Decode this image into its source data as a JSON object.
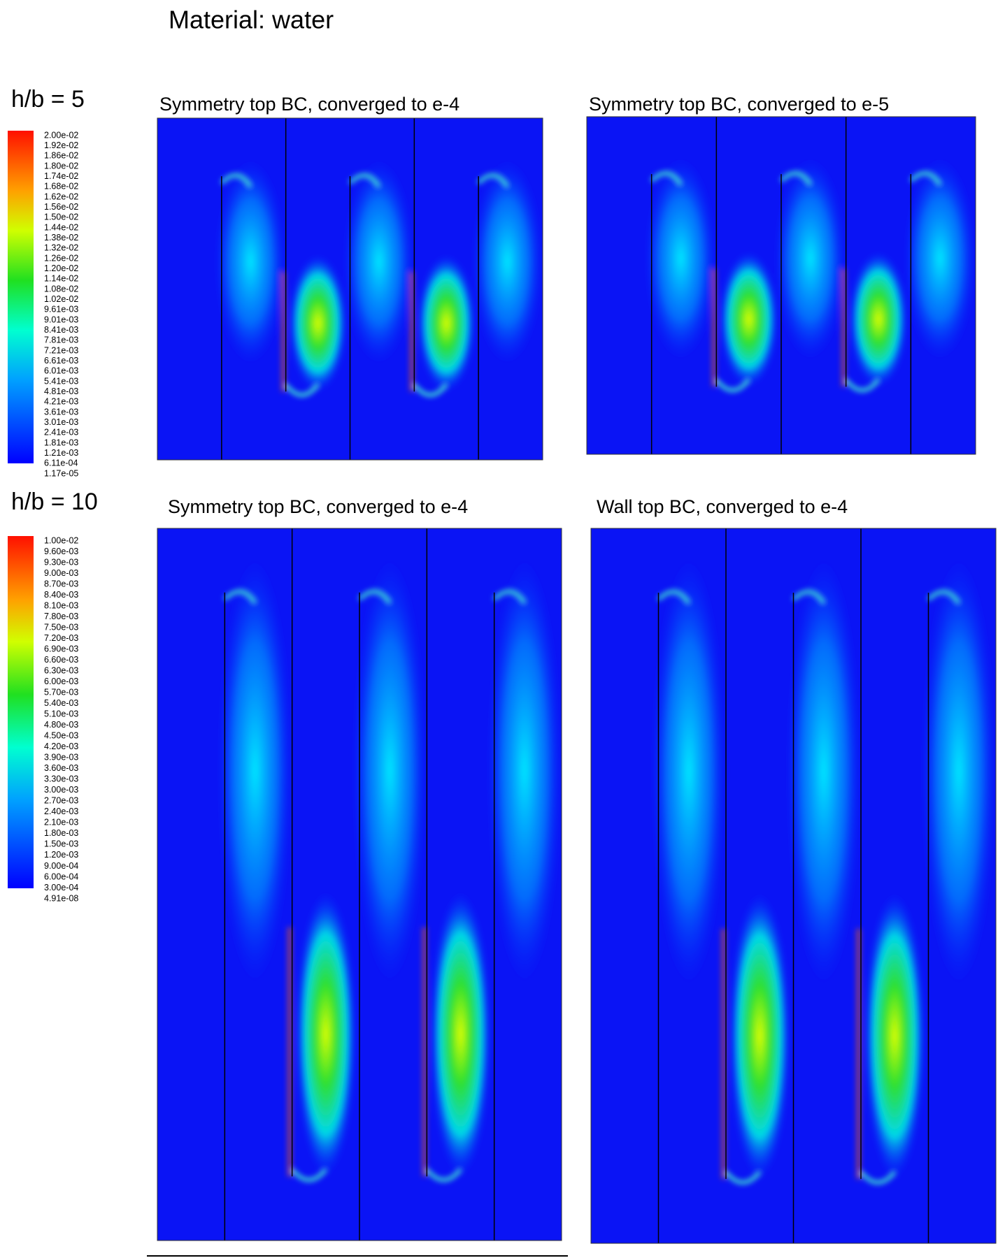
{
  "title": "Material: water",
  "sections": [
    {
      "label": "h/b = 5",
      "colorbar": [
        "2.00e-02",
        "1.92e-02",
        "1.86e-02",
        "1.80e-02",
        "1.74e-02",
        "1.68e-02",
        "1.62e-02",
        "1.56e-02",
        "1.50e-02",
        "1.44e-02",
        "1.38e-02",
        "1.32e-02",
        "1.26e-02",
        "1.20e-02",
        "1.14e-02",
        "1.08e-02",
        "1.02e-02",
        "9.61e-03",
        "9.01e-03",
        "8.41e-03",
        "7.81e-03",
        "7.21e-03",
        "6.61e-03",
        "6.01e-03",
        "5.41e-03",
        "4.81e-03",
        "4.21e-03",
        "3.61e-03",
        "3.01e-03",
        "2.41e-03",
        "1.81e-03",
        "1.21e-03",
        "6.11e-04",
        "1.17e-05"
      ],
      "panels": [
        {
          "title": "Symmetry top BC, converged to e-4"
        },
        {
          "title": "Symmetry top BC, converged to e-5"
        }
      ]
    },
    {
      "label": "h/b = 10",
      "colorbar": [
        "1.00e-02",
        "9.60e-03",
        "9.30e-03",
        "9.00e-03",
        "8.70e-03",
        "8.40e-03",
        "8.10e-03",
        "7.80e-03",
        "7.50e-03",
        "7.20e-03",
        "6.90e-03",
        "6.60e-03",
        "6.30e-03",
        "6.00e-03",
        "5.70e-03",
        "5.40e-03",
        "5.10e-03",
        "4.80e-03",
        "4.50e-03",
        "4.20e-03",
        "3.90e-03",
        "3.60e-03",
        "3.30e-03",
        "3.00e-03",
        "2.70e-03",
        "2.40e-03",
        "2.10e-03",
        "1.80e-03",
        "1.50e-03",
        "1.20e-03",
        "9.00e-04",
        "6.00e-04",
        "3.00e-04",
        "4.91e-08"
      ],
      "panels": [
        {
          "title": "Symmetry top BC, converged to e-4"
        },
        {
          "title": "Wall top BC, converged to e-4"
        }
      ]
    }
  ]
}
